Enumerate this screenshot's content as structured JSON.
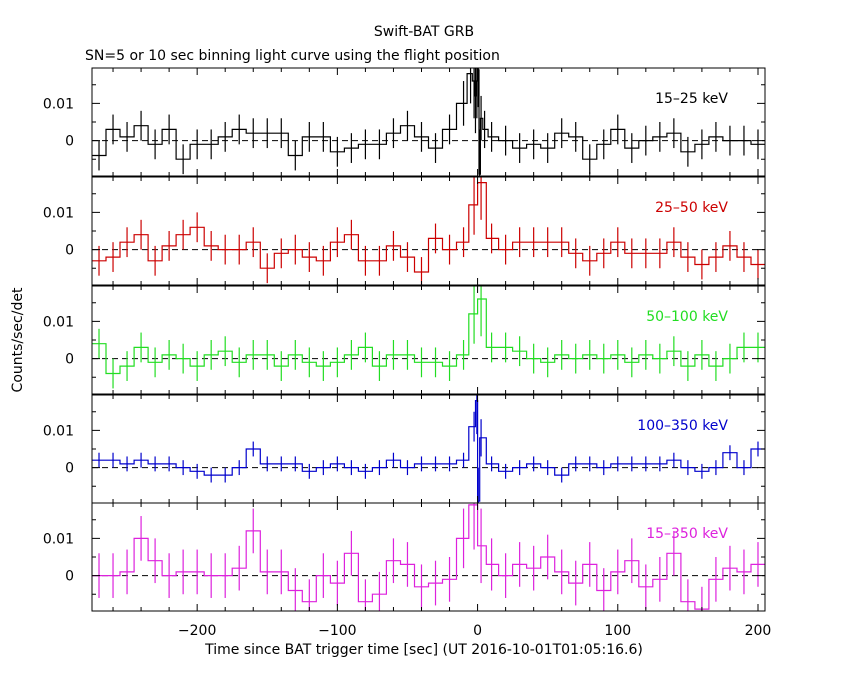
{
  "chart_data": {
    "type": "line",
    "title": "Swift-BAT GRB",
    "subtitle": "SN=5 or 10 sec binning light curve using the flight position",
    "xlabel": "Time since BAT trigger time [sec] (UT 2016-10-01T01:05:16.6)",
    "ylabel": "Counts/sec/det",
    "xlim": [
      -275,
      205
    ],
    "x_ticks": [
      -200,
      -100,
      0,
      100,
      200
    ],
    "x_tick_labels": [
      "−200",
      "−100",
      "0",
      "100",
      "200"
    ],
    "ylim": [
      -0.0095,
      0.0195
    ],
    "y_ticks": [
      0,
      0.01
    ],
    "y_tick_labels": [
      "0",
      "0.01"
    ],
    "zero_line": "dashed",
    "grid": false,
    "panels": [
      {
        "name": "15–25 keV",
        "color": "#000000",
        "x": [
          -270,
          -260,
          -250,
          -240,
          -230,
          -220,
          -210,
          -200,
          -190,
          -180,
          -170,
          -160,
          -150,
          -140,
          -130,
          -120,
          -110,
          -100,
          -90,
          -80,
          -70,
          -60,
          -50,
          -40,
          -30,
          -20,
          -10,
          -5,
          -2.5,
          -1.5,
          -0.5,
          0.5,
          1.5,
          2.5,
          5,
          10,
          20,
          30,
          40,
          50,
          60,
          70,
          80,
          90,
          100,
          110,
          120,
          130,
          140,
          150,
          160,
          170,
          180,
          190,
          200
        ],
        "y": [
          -0.004,
          0.003,
          0.001,
          0.004,
          -0.001,
          0.003,
          -0.005,
          -0.001,
          -0.001,
          0.001,
          0.003,
          0.002,
          0.002,
          0.002,
          -0.004,
          0.001,
          0.001,
          -0.003,
          -0.002,
          -0.001,
          -0.001,
          0.002,
          0.004,
          0.001,
          -0.002,
          0.003,
          0.01,
          0.018,
          0.016,
          0.012,
          0.016,
          0.019,
          -0.009,
          0.006,
          0.003,
          0.001,
          0,
          -0.002,
          -0.001,
          -0.002,
          0.002,
          0.001,
          -0.005,
          -0.001,
          0.003,
          -0.002,
          0,
          0.001,
          0.002,
          -0.003,
          -0.001,
          0.001,
          0,
          0,
          -0.001
        ],
        "error": [
          0.004,
          0.004,
          0.004,
          0.004,
          0.004,
          0.004,
          0.004,
          0.004,
          0.004,
          0.004,
          0.004,
          0.004,
          0.004,
          0.004,
          0.004,
          0.004,
          0.004,
          0.004,
          0.004,
          0.004,
          0.004,
          0.004,
          0.004,
          0.004,
          0.004,
          0.004,
          0.006,
          0.008,
          0.01,
          0.01,
          0.01,
          0.01,
          0.012,
          0.006,
          0.005,
          0.004,
          0.004,
          0.004,
          0.004,
          0.004,
          0.004,
          0.004,
          0.004,
          0.004,
          0.004,
          0.004,
          0.004,
          0.004,
          0.004,
          0.004,
          0.004,
          0.004,
          0.004,
          0.004,
          0.004
        ]
      },
      {
        "name": "25–50 keV",
        "color": "#cc0000",
        "x": [
          -270,
          -260,
          -250,
          -240,
          -230,
          -220,
          -210,
          -200,
          -190,
          -180,
          -170,
          -160,
          -150,
          -140,
          -130,
          -120,
          -110,
          -100,
          -90,
          -80,
          -70,
          -60,
          -50,
          -40,
          -30,
          -20,
          -10,
          -2.5,
          2.5,
          10,
          20,
          30,
          40,
          50,
          60,
          70,
          80,
          90,
          100,
          110,
          120,
          130,
          140,
          150,
          160,
          170,
          180,
          190,
          200
        ],
        "y": [
          -0.003,
          -0.002,
          0.002,
          0.004,
          -0.003,
          0.001,
          0.004,
          0.006,
          0.001,
          0,
          0,
          0.002,
          -0.005,
          -0.001,
          0,
          -0.002,
          -0.003,
          0.002,
          0.004,
          -0.003,
          -0.003,
          0.001,
          -0.002,
          -0.006,
          0.003,
          0,
          0.002,
          0.012,
          0.018,
          0.003,
          0,
          0.002,
          0.002,
          0.002,
          0.002,
          -0.001,
          -0.003,
          -0.001,
          0.002,
          -0.001,
          -0.001,
          -0.001,
          0.002,
          -0.002,
          -0.004,
          -0.002,
          0.001,
          -0.002,
          -0.004
        ],
        "error": [
          0.004,
          0.004,
          0.004,
          0.004,
          0.004,
          0.004,
          0.004,
          0.004,
          0.004,
          0.004,
          0.004,
          0.004,
          0.004,
          0.004,
          0.004,
          0.004,
          0.004,
          0.004,
          0.004,
          0.004,
          0.004,
          0.004,
          0.004,
          0.004,
          0.004,
          0.004,
          0.004,
          0.008,
          0.01,
          0.004,
          0.004,
          0.004,
          0.004,
          0.004,
          0.004,
          0.004,
          0.004,
          0.004,
          0.004,
          0.004,
          0.004,
          0.004,
          0.004,
          0.004,
          0.004,
          0.004,
          0.004,
          0.004,
          0.004
        ]
      },
      {
        "name": "50–100 keV",
        "color": "#22dd22",
        "x": [
          -270,
          -260,
          -250,
          -240,
          -230,
          -220,
          -210,
          -200,
          -190,
          -180,
          -170,
          -160,
          -150,
          -140,
          -130,
          -120,
          -110,
          -100,
          -90,
          -80,
          -70,
          -60,
          -50,
          -40,
          -30,
          -20,
          -10,
          -2.5,
          2.5,
          10,
          20,
          30,
          40,
          50,
          60,
          70,
          80,
          90,
          100,
          110,
          120,
          130,
          140,
          150,
          160,
          170,
          180,
          190,
          200
        ],
        "y": [
          0.004,
          -0.004,
          -0.002,
          0.003,
          -0.001,
          0.001,
          0,
          -0.002,
          0.001,
          0.002,
          -0.001,
          0.001,
          0.001,
          -0.002,
          0.001,
          -0.001,
          -0.002,
          -0.001,
          0.001,
          0.003,
          -0.002,
          0.001,
          0.001,
          -0.001,
          -0.001,
          -0.002,
          0.001,
          0.012,
          0.016,
          0.003,
          0.003,
          0.002,
          0,
          -0.001,
          0.001,
          0,
          0.001,
          0,
          0.001,
          -0.001,
          0.001,
          0,
          0.002,
          -0.002,
          0.001,
          -0.002,
          0,
          0.003,
          0.003
        ],
        "error": [
          0.004,
          0.004,
          0.004,
          0.004,
          0.004,
          0.004,
          0.004,
          0.004,
          0.004,
          0.004,
          0.004,
          0.004,
          0.004,
          0.004,
          0.004,
          0.004,
          0.004,
          0.004,
          0.004,
          0.004,
          0.004,
          0.004,
          0.004,
          0.004,
          0.004,
          0.004,
          0.004,
          0.008,
          0.01,
          0.004,
          0.004,
          0.004,
          0.004,
          0.004,
          0.004,
          0.004,
          0.004,
          0.004,
          0.004,
          0.004,
          0.004,
          0.004,
          0.004,
          0.004,
          0.004,
          0.004,
          0.004,
          0.004,
          0.004
        ]
      },
      {
        "name": "100–350 keV",
        "color": "#0000cc",
        "x": [
          -270,
          -260,
          -250,
          -240,
          -230,
          -220,
          -210,
          -200,
          -190,
          -180,
          -170,
          -160,
          -150,
          -140,
          -130,
          -120,
          -110,
          -100,
          -90,
          -80,
          -70,
          -60,
          -50,
          -40,
          -30,
          -20,
          -10,
          -2.5,
          -0.5,
          0.5,
          2.5,
          10,
          20,
          30,
          40,
          50,
          60,
          70,
          80,
          90,
          100,
          110,
          120,
          130,
          140,
          150,
          160,
          170,
          180,
          190,
          200
        ],
        "y": [
          0.002,
          0.002,
          0.001,
          0.002,
          0.001,
          0.001,
          0,
          -0.001,
          -0.002,
          -0.002,
          0,
          0.005,
          0.001,
          0.001,
          0.001,
          -0.001,
          0,
          0.001,
          0,
          -0.001,
          0,
          0.002,
          0,
          0.001,
          0.001,
          0.001,
          0.002,
          0.011,
          0.018,
          -0.009,
          0.008,
          0.001,
          -0.001,
          0,
          0.001,
          0,
          -0.002,
          0.001,
          0.001,
          0,
          0.001,
          0.001,
          0.001,
          0.001,
          0.002,
          0,
          -0.001,
          0,
          0.004,
          0,
          0.005
        ],
        "error": [
          0.002,
          0.002,
          0.002,
          0.002,
          0.002,
          0.002,
          0.002,
          0.002,
          0.002,
          0.002,
          0.002,
          0.002,
          0.002,
          0.002,
          0.002,
          0.002,
          0.002,
          0.002,
          0.002,
          0.002,
          0.002,
          0.002,
          0.002,
          0.002,
          0.002,
          0.002,
          0.002,
          0.004,
          0.009,
          0.009,
          0.005,
          0.002,
          0.002,
          0.002,
          0.002,
          0.002,
          0.002,
          0.002,
          0.002,
          0.002,
          0.002,
          0.002,
          0.002,
          0.002,
          0.002,
          0.002,
          0.002,
          0.002,
          0.002,
          0.002,
          0.002
        ]
      },
      {
        "name": "15–350 keV",
        "color": "#dd22dd",
        "x": [
          -270,
          -260,
          -250,
          -240,
          -230,
          -220,
          -210,
          -200,
          -190,
          -180,
          -170,
          -160,
          -150,
          -140,
          -130,
          -120,
          -110,
          -100,
          -90,
          -80,
          -70,
          -60,
          -50,
          -40,
          -30,
          -20,
          -10,
          -2.5,
          2.5,
          10,
          20,
          30,
          40,
          50,
          60,
          70,
          80,
          90,
          100,
          110,
          120,
          130,
          140,
          150,
          160,
          170,
          180,
          190,
          200
        ],
        "y": [
          0,
          0,
          0.001,
          0.01,
          0.004,
          0,
          0.001,
          0.001,
          0,
          0,
          0.002,
          0.012,
          0.001,
          0.001,
          -0.004,
          -0.007,
          0,
          -0.002,
          0.006,
          -0.007,
          -0.005,
          0.004,
          0.003,
          -0.003,
          -0.002,
          -0.001,
          0.01,
          0.019,
          0.008,
          0.003,
          0,
          0.003,
          0.002,
          0.005,
          0.001,
          -0.002,
          0.003,
          -0.004,
          0.001,
          0.004,
          -0.003,
          -0.001,
          0.006,
          -0.007,
          -0.009,
          -0.001,
          0.002,
          0.001,
          0.003
        ],
        "error": [
          0.006,
          0.006,
          0.006,
          0.006,
          0.006,
          0.006,
          0.006,
          0.006,
          0.006,
          0.006,
          0.006,
          0.006,
          0.006,
          0.006,
          0.006,
          0.006,
          0.006,
          0.006,
          0.006,
          0.006,
          0.006,
          0.006,
          0.006,
          0.006,
          0.006,
          0.006,
          0.008,
          0.012,
          0.01,
          0.007,
          0.006,
          0.006,
          0.006,
          0.006,
          0.006,
          0.006,
          0.006,
          0.006,
          0.006,
          0.006,
          0.006,
          0.006,
          0.006,
          0.006,
          0.006,
          0.006,
          0.006,
          0.006,
          0.006
        ]
      }
    ]
  }
}
